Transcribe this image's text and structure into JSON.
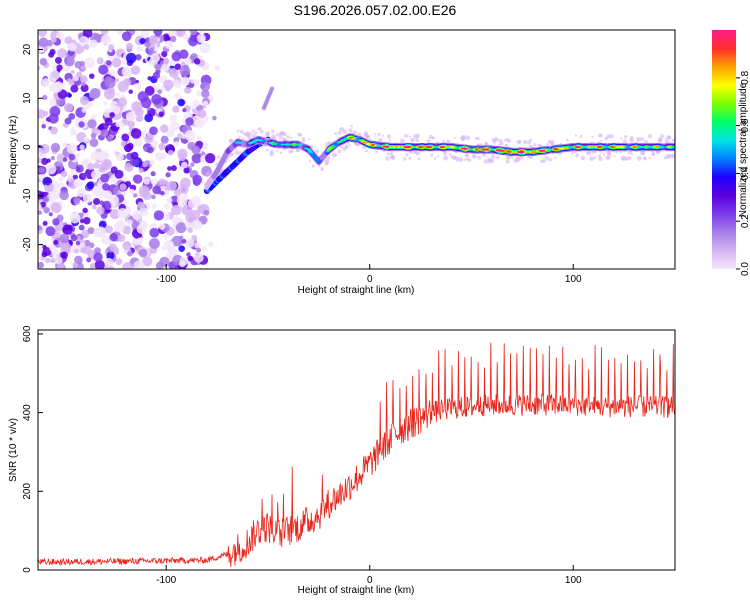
{
  "title": "S196.2026.057.02.00.E26",
  "colors": {
    "line": "#e8241b",
    "cmap": [
      "#f3e6fb",
      "#d7b4f2",
      "#a77de8",
      "#7b3bea",
      "#5b00e0",
      "#1e00ff",
      "#0080ff",
      "#00e6e6",
      "#00ff66",
      "#7cff00",
      "#ffff00",
      "#ffa000",
      "#ff2d2d",
      "#ff1e8c"
    ]
  },
  "chart_data": [
    {
      "type": "heatmap",
      "title": "",
      "xlabel": "Height of straight line (km)",
      "ylabel": "Frequency (Hz)",
      "xlim": [
        -163,
        150
      ],
      "ylim": [
        -25,
        24
      ],
      "xticks": [
        -100,
        0,
        100
      ],
      "xtick_labels": [
        "-100",
        "0",
        "100"
      ],
      "yticks": [
        -20,
        -10,
        0,
        10,
        20
      ],
      "ytick_labels": [
        "-20",
        "-10",
        "0",
        "10",
        "20"
      ],
      "colorbar": {
        "label": "Normalized spectral amplitude",
        "range": [
          0,
          1
        ],
        "ticks": [
          0.0,
          0.2,
          0.4,
          0.6,
          0.8
        ],
        "tick_labels": [
          "0.0",
          "0.2",
          "0.4",
          "0.6",
          "0.8"
        ]
      },
      "noise_region_x": [
        -163,
        -80
      ],
      "ridge": {
        "x": [
          -80,
          -75,
          -70,
          -65,
          -60,
          -55,
          -50,
          -45,
          -40,
          -35,
          -30,
          -25,
          -20,
          -15,
          -10,
          -5,
          0,
          10,
          20,
          30,
          40,
          50,
          60,
          70,
          80,
          90,
          100,
          110,
          120,
          130,
          140,
          150
        ],
        "freq": [
          -8,
          -5,
          -1,
          1,
          0.5,
          1.5,
          1,
          0.5,
          0.5,
          0.5,
          -0.5,
          -3,
          -0.5,
          1,
          2,
          1.5,
          0.5,
          0,
          0,
          0,
          0,
          -0.5,
          -0.5,
          -1,
          -1,
          -0.5,
          0,
          0,
          0,
          0,
          0,
          0
        ],
        "amplitude": [
          0.25,
          0.3,
          0.4,
          0.45,
          0.45,
          0.55,
          0.5,
          0.55,
          0.6,
          0.55,
          0.5,
          0.45,
          0.55,
          0.6,
          0.7,
          0.75,
          0.8,
          0.85,
          0.9,
          0.85,
          0.8,
          0.85,
          0.9,
          0.95,
          0.9,
          0.8,
          0.8,
          0.75,
          0.8,
          0.7,
          0.7,
          0.65
        ]
      },
      "secondary_ridge": {
        "x": [
          -80,
          -75,
          -70,
          -65,
          -60,
          -55,
          -50
        ],
        "freq": [
          -9,
          -7,
          -5,
          -3,
          -1,
          0.5,
          1.5
        ]
      },
      "spur": {
        "x": [
          -52,
          -48
        ],
        "freq": [
          8,
          12
        ]
      }
    },
    {
      "type": "line",
      "title": "",
      "xlabel": "Height of straight line (km)",
      "ylabel": "SNR (10 * v/v)",
      "xlim": [
        -163,
        150
      ],
      "ylim": [
        0,
        610
      ],
      "xticks": [
        -100,
        0,
        100
      ],
      "xtick_labels": [
        "-100",
        "0",
        "100"
      ],
      "yticks": [
        0,
        200,
        400,
        600
      ],
      "ytick_labels": [
        "0",
        "200",
        "400",
        "600"
      ],
      "trend": {
        "x": [
          -163,
          -120,
          -80,
          -70,
          -60,
          -55,
          -50,
          -45,
          -40,
          -35,
          -30,
          -25,
          -20,
          -15,
          -10,
          -5,
          0,
          5,
          10,
          15,
          20,
          25,
          30,
          40,
          50,
          60,
          70,
          80,
          90,
          100,
          110,
          120,
          130,
          140,
          150
        ],
        "snr": [
          20,
          22,
          25,
          40,
          70,
          100,
          110,
          90,
          100,
          110,
          125,
          140,
          170,
          190,
          215,
          240,
          270,
          300,
          330,
          355,
          370,
          385,
          400,
          410,
          415,
          420,
          420,
          420,
          420,
          420,
          415,
          415,
          415,
          415,
          415
        ]
      },
      "spike_start_x": 5,
      "spike_spacing_x": 3.2,
      "spike_height": [
        90,
        160
      ]
    }
  ]
}
